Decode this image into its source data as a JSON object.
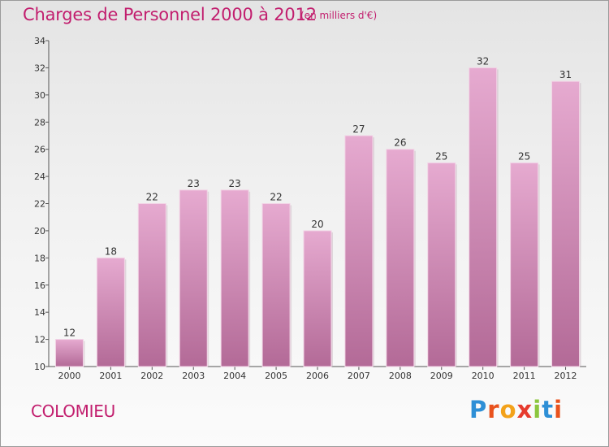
{
  "page": {
    "commune": "COLOMIEU",
    "logo_letters": [
      "P",
      "r",
      "o",
      "x",
      "i",
      "t",
      "i"
    ]
  },
  "chart_data": {
    "type": "bar",
    "title": "Charges de Personnel 2000 à 2012",
    "subtitle": "(en milliers d'€)",
    "categories": [
      "2000",
      "2001",
      "2002",
      "2003",
      "2004",
      "2005",
      "2006",
      "2007",
      "2008",
      "2009",
      "2010",
      "2011",
      "2012"
    ],
    "values": [
      12,
      18,
      22,
      23,
      23,
      22,
      20,
      27,
      26,
      25,
      32,
      25,
      31
    ],
    "ylim": [
      10,
      34
    ],
    "yticks": [
      10,
      12,
      14,
      16,
      18,
      20,
      22,
      24,
      26,
      28,
      30,
      32,
      34
    ],
    "grid": false,
    "colors": {
      "bar_top": "#e3a6cc",
      "bar_bottom": "#b66d99",
      "text_accent": "#c21e6e"
    }
  }
}
